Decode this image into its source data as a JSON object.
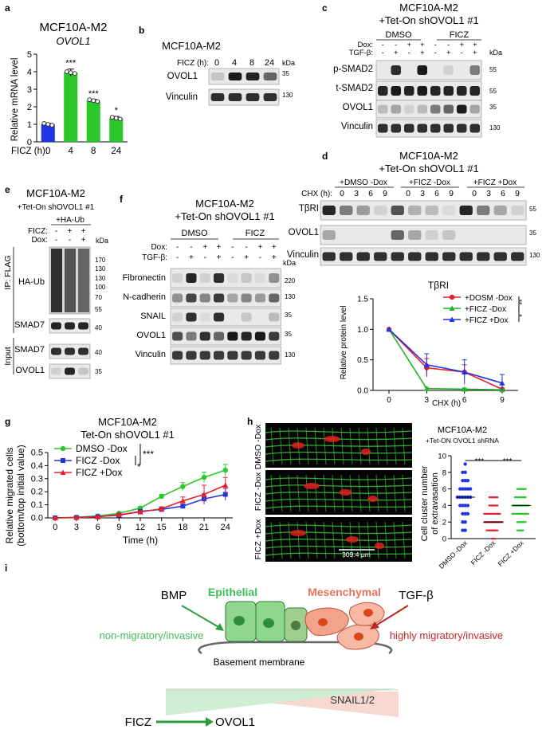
{
  "panel_letters": [
    "a",
    "b",
    "c",
    "d",
    "e",
    "f",
    "g",
    "h",
    "i"
  ],
  "a": {
    "title": "MCF10A-M2",
    "subtitle": "OVOL1",
    "ylabel": "Relative mRNA level",
    "xlabel": "FICZ (h):",
    "sig": [
      "***",
      "***",
      "*"
    ]
  },
  "b": {
    "title": "MCF10A-M2",
    "cond_label": "FICZ (h):",
    "times": [
      "0",
      "4",
      "8",
      "24"
    ],
    "kda": "kDa",
    "rows": [
      {
        "label": "OVOL1",
        "mw": "35"
      },
      {
        "label": "Vinculin",
        "mw": "130"
      }
    ]
  },
  "c": {
    "title1": "MCF10A-M2",
    "title2": "+Tet-On shOVOL1 #1",
    "groups": [
      "DMSO",
      "FICZ"
    ],
    "dox_label": "Dox:",
    "tgf_label": "TGF-β:",
    "dox": [
      "-",
      "-",
      "+",
      "+",
      "-",
      "-",
      "+",
      "+"
    ],
    "tgf": [
      "-",
      "+",
      "-",
      "+",
      "-",
      "+",
      "-",
      "+"
    ],
    "kda": "kDa",
    "rows": [
      {
        "label": "p-SMAD2",
        "mw": "55"
      },
      {
        "label": "t-SMAD2",
        "mw": "55"
      },
      {
        "label": "OVOL1",
        "mw": "35"
      },
      {
        "label": "Vinculin",
        "mw": "130"
      }
    ]
  },
  "d": {
    "title1": "MCF10A-M2",
    "title2": "+Tet-On shOVOL1 #1",
    "groups": [
      "+DMSO -Dox",
      "+FICZ -Dox",
      "+FICZ +Dox"
    ],
    "chx_label": "CHX (h):",
    "chx_times": [
      "0",
      "3",
      "6",
      "9"
    ],
    "rows": [
      {
        "label": "TβRI",
        "mw": "55"
      },
      {
        "label": "OVOL1",
        "mw": "35"
      },
      {
        "label": "Vinculin",
        "mw": "130"
      }
    ],
    "sig": [
      "**",
      "*"
    ]
  },
  "e": {
    "title1": "MCF10A-M2",
    "title2": "+Tet-On shOVOL1 #1",
    "ha_ub_label": "+HA-Ub",
    "ficz_label": "FICZ:",
    "dox_label": "Dox:",
    "ficz": [
      "-",
      "+",
      "+"
    ],
    "dox": [
      "-",
      "-",
      "+"
    ],
    "kda": "kDa",
    "ip_label": "IP: FLAG",
    "input_label": "Input",
    "ip_rows": [
      {
        "label": "HA-Ub"
      },
      {
        "label": "SMAD7",
        "mw": "40"
      }
    ],
    "ladder": [
      "170",
      "130",
      "130",
      "100",
      "70",
      "55"
    ],
    "input_rows": [
      {
        "label": "SMAD7",
        "mw": "40"
      },
      {
        "label": "OVOL1",
        "mw": "35"
      }
    ]
  },
  "f": {
    "title1": "MCF10A-M2",
    "title2": "+Tet-On shOVOL1 #1",
    "groups": [
      "DMSO",
      "FICZ"
    ],
    "dox_label": "Dox:",
    "tgf_label": "TGF-β:",
    "dox": [
      "-",
      "-",
      "+",
      "+",
      "-",
      "-",
      "+",
      "+"
    ],
    "tgf": [
      "-",
      "+",
      "-",
      "+",
      "-",
      "+",
      "-",
      "+"
    ],
    "kda": "kDa",
    "rows": [
      {
        "label": "Fibronectin",
        "mw": "220"
      },
      {
        "label": "N-cadherin",
        "mw": "130"
      },
      {
        "label": "SNAIL",
        "mw": "35"
      },
      {
        "label": "OVOL1",
        "mw": "35"
      },
      {
        "label": "Vinculin",
        "mw": "130"
      }
    ]
  },
  "g": {
    "title1": "MCF10A-M2",
    "title2": "Tet-On shOVOL1 #1",
    "ylabel1": "Relative migrated cells",
    "ylabel2": "(bottom/top initial value)",
    "sig": [
      "***",
      "*"
    ]
  },
  "h": {
    "image_labels": [
      "DMSO -Dox",
      "FICZ -Dox",
      "FICZ +Dox"
    ],
    "scale_bar": "309.4 μm",
    "title1": "MCF10A-M2",
    "title2": "+Tet-ON OVOL1 shRNA",
    "ylabel1": "Cell cluster number",
    "ylabel2": "of extravasation",
    "sig": [
      "***",
      "***"
    ]
  },
  "i": {
    "bmp": "BMP",
    "epithelial": "Epithelial",
    "mesenchymal": "Mesenchymal",
    "tgfb": "TGF-β",
    "non_migratory": "non-migratory/invasive",
    "highly_migratory": "highly migratory/invasive",
    "basement": "Basement membrane",
    "ficz": "FICZ",
    "ovol1": "OVOL1",
    "snail": "SNAIL1/2",
    "colors": {
      "epithelial": "#3fbf5c",
      "mesenchymal": "#e8735a",
      "bmp": "#2e9c3c",
      "tgf": "#b8271c"
    }
  },
  "chart_data": [
    {
      "id": "a",
      "type": "bar",
      "title": "MCF10A-M2 OVOL1",
      "categories": [
        "0",
        "4",
        "8",
        "24"
      ],
      "values": [
        1.0,
        3.95,
        2.35,
        1.35
      ],
      "errors": [
        0.05,
        0.2,
        0.07,
        0.1
      ],
      "colors": [
        "#2233e0",
        "#2bc72b",
        "#2bc72b",
        "#2bc72b"
      ],
      "ylabel": "Relative mRNA level",
      "xlabel": "FICZ (h):",
      "ylim": [
        0,
        5
      ],
      "yticks": [
        "0",
        "1",
        "2",
        "3",
        "4",
        "5"
      ]
    },
    {
      "id": "d",
      "type": "line",
      "title": "TβRI",
      "xlabel": "CHX (h)",
      "ylabel": "Relative protein level",
      "x": [
        0,
        3,
        6,
        9
      ],
      "xticks": [
        "0",
        "3",
        "6",
        "9"
      ],
      "ylim": [
        0,
        1.5
      ],
      "yticks": [
        "0.0",
        "0.5",
        "1.0",
        "1.5"
      ],
      "series": [
        {
          "name": "+DOSM -Dox",
          "color": "#e8202a",
          "values": [
            1.0,
            0.37,
            0.3,
            0.02
          ],
          "errors": [
            0,
            0.15,
            0.12,
            0.02
          ]
        },
        {
          "name": "+FICZ -Dox",
          "color": "#2bb02b",
          "values": [
            1.0,
            0.03,
            0.02,
            0.01
          ],
          "errors": [
            0,
            0.02,
            0.02,
            0.01
          ]
        },
        {
          "name": "+FICZ +Dox",
          "color": "#2233e0",
          "values": [
            1.0,
            0.42,
            0.3,
            0.12
          ],
          "errors": [
            0,
            0.18,
            0.2,
            0.14
          ]
        }
      ]
    },
    {
      "id": "g",
      "type": "line",
      "title": "MCF10A-M2 Tet-On shOVOL1 #1",
      "xlabel": "Time (h)",
      "ylabel": "Relative migrated cells (bottom/top initial value)",
      "x": [
        0,
        3,
        6,
        9,
        12,
        15,
        18,
        21,
        24
      ],
      "xticks": [
        "0",
        "3",
        "6",
        "9",
        "12",
        "15",
        "18",
        "21",
        "24"
      ],
      "ylim": [
        0,
        0.5
      ],
      "yticks": [
        "0.0",
        "0.1",
        "0.2",
        "0.3",
        "0.4",
        "0.5"
      ],
      "series": [
        {
          "name": "DMSO -Dox",
          "color": "#2bc72b",
          "values": [
            0,
            0.005,
            0.015,
            0.035,
            0.075,
            0.165,
            0.24,
            0.31,
            0.365
          ],
          "errors": [
            0.003,
            0.005,
            0.006,
            0.01,
            0.012,
            0.015,
            0.03,
            0.04,
            0.045
          ]
        },
        {
          "name": "FICZ -Dox",
          "color": "#2233e0",
          "values": [
            0,
            0.003,
            0.01,
            0.02,
            0.05,
            0.065,
            0.09,
            0.145,
            0.18
          ],
          "errors": [
            0.002,
            0.003,
            0.004,
            0.006,
            0.008,
            0.01,
            0.012,
            0.04,
            0.045
          ]
        },
        {
          "name": "FICZ +Dox",
          "color": "#e8202a",
          "values": [
            0,
            0.002,
            0.008,
            0.025,
            0.045,
            0.07,
            0.13,
            0.18,
            0.25
          ],
          "errors": [
            0.002,
            0.003,
            0.004,
            0.006,
            0.008,
            0.015,
            0.03,
            0.07,
            0.06
          ]
        }
      ]
    },
    {
      "id": "h",
      "type": "scatter",
      "title": "MCF10A-M2 +Tet-ON OVOL1 shRNA",
      "ylabel": "Cell cluster number of extravasation",
      "categories": [
        "DMSO -Dox",
        "FICZ -Dox",
        "FICZ +Dox"
      ],
      "colors": [
        "#2233e0",
        "#e8202a",
        "#2bc72b"
      ],
      "ylim": [
        0,
        10
      ],
      "yticks": [
        "0",
        "2",
        "4",
        "6",
        "8",
        "10"
      ],
      "medians": [
        5,
        2,
        4
      ],
      "points": [
        [
          1,
          1,
          2,
          2,
          3,
          3,
          3,
          4,
          4,
          4,
          4,
          5,
          5,
          5,
          5,
          5,
          5,
          6,
          6,
          6,
          6,
          6,
          7,
          7,
          7,
          8,
          8,
          9
        ],
        [
          0,
          1,
          1,
          1,
          1,
          2,
          2,
          2,
          2,
          2,
          2,
          2,
          3,
          3,
          3,
          3,
          3,
          3,
          4,
          4,
          4,
          5,
          5,
          5
        ],
        [
          1,
          1,
          2,
          2,
          2,
          3,
          3,
          3,
          3,
          3,
          3,
          4,
          4,
          4,
          4,
          4,
          4,
          5,
          5,
          5,
          5,
          6,
          6,
          6
        ]
      ]
    }
  ]
}
